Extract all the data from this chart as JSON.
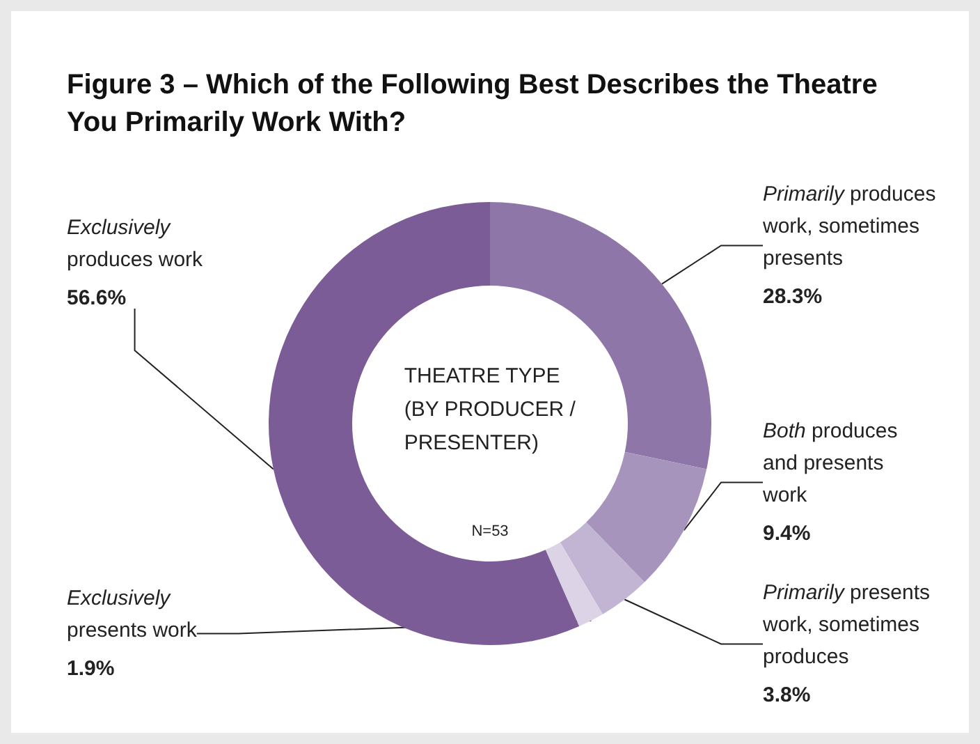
{
  "chart_data": {
    "type": "donut",
    "title": "Figure 3 – Which of the Following Best Describes the Theatre You Primarily Work With?",
    "categories": [
      "Primarily produces work, sometimes presents",
      "Both produces and presents work",
      "Primarily presents work, sometimes produces",
      "Exclusively presents work",
      "Exclusively produces work"
    ],
    "values": [
      28.3,
      9.4,
      3.8,
      1.9,
      56.6
    ],
    "colors": [
      "#8e76a8",
      "#a794bd",
      "#c2b4d3",
      "#ddd3e6",
      "#7b5c96"
    ],
    "annotations": [
      "THEATRE TYPE (BY PRODUCER / PRESENTER)",
      "N=53"
    ],
    "value_labels": [
      "28.3%",
      "9.4%",
      "3.8%",
      "1.9%",
      "56.6%"
    ],
    "legend": false
  }
}
